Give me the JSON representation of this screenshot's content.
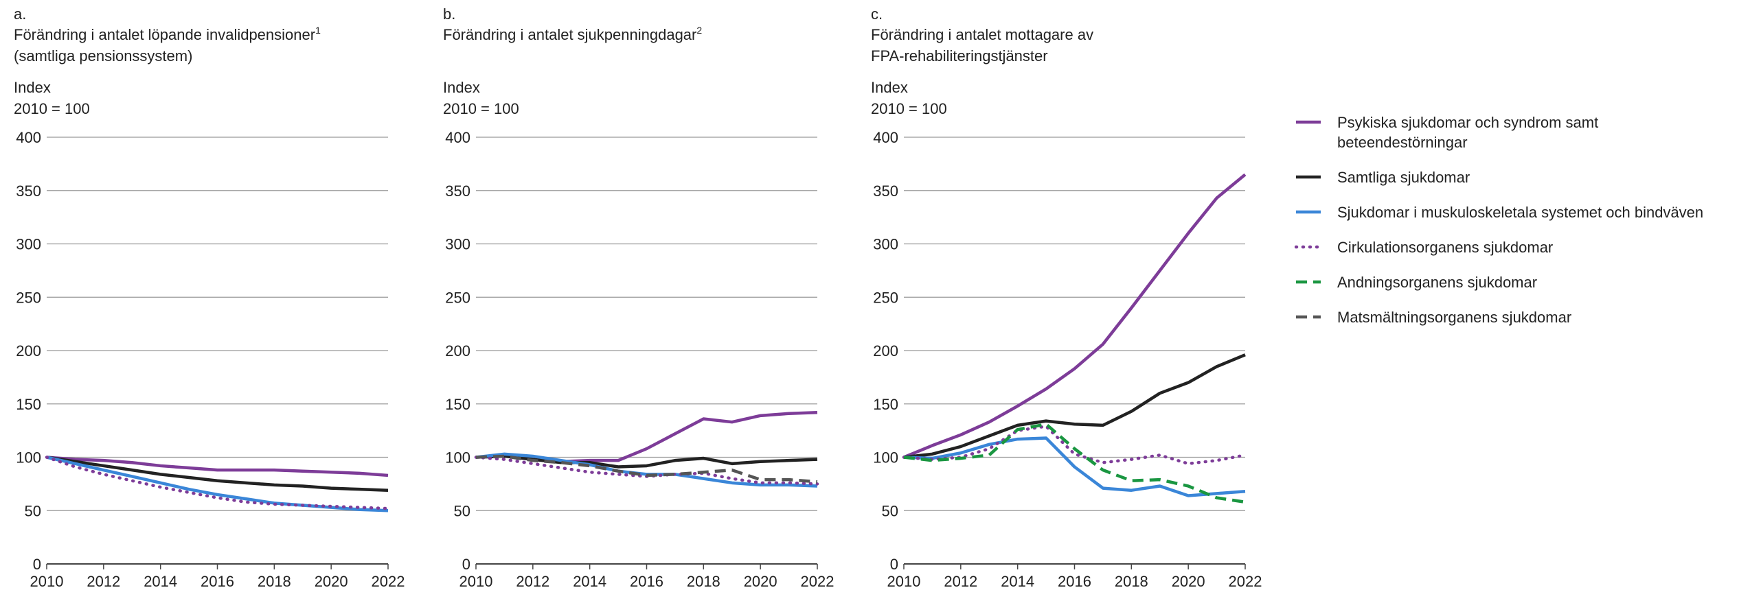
{
  "chart_data": [
    {
      "type": "line",
      "label": "a.",
      "title": [
        "Förändring i antalet löpande invalidpensioner",
        "(samtliga pensionssystem)"
      ],
      "footnote": "1",
      "ylabel": [
        "Index",
        "2010 = 100"
      ],
      "x": [
        2010,
        2011,
        2012,
        2013,
        2014,
        2015,
        2016,
        2017,
        2018,
        2019,
        2020,
        2021,
        2022
      ],
      "xlim": [
        2010,
        2022
      ],
      "xticks": [
        2010,
        2012,
        2014,
        2016,
        2018,
        2020,
        2022
      ],
      "ylim": [
        0,
        400
      ],
      "yticks": [
        0,
        50,
        100,
        150,
        200,
        250,
        300,
        350,
        400
      ],
      "grid": true,
      "series": [
        {
          "name": "Psykiska sjukdomar och syndrom samt beteendestörningar",
          "color": "#7d3c98",
          "dash": "solid",
          "values": [
            100,
            98,
            97,
            95,
            92,
            90,
            88,
            88,
            88,
            87,
            86,
            85,
            83
          ]
        },
        {
          "name": "Samtliga sjukdomar",
          "color": "#222222",
          "dash": "solid",
          "values": [
            100,
            96,
            92,
            88,
            84,
            81,
            78,
            76,
            74,
            73,
            71,
            70,
            69
          ]
        },
        {
          "name": "Sjukdomar i muskuloskeletala systemet och bindväven",
          "color": "#3a86d8",
          "dash": "solid",
          "values": [
            100,
            94,
            88,
            82,
            76,
            70,
            65,
            61,
            57,
            55,
            53,
            51,
            50
          ]
        },
        {
          "name": "Cirkulationsorganens sjukdomar",
          "color": "#7d3c98",
          "dash": "dotted",
          "values": [
            100,
            91,
            84,
            78,
            72,
            67,
            62,
            58,
            56,
            55,
            54,
            53,
            52
          ]
        }
      ]
    },
    {
      "type": "line",
      "label": "b.",
      "title": [
        "Förändring i antalet sjukpenningdagar"
      ],
      "footnote": "2",
      "ylabel": [
        "Index",
        "2010 = 100"
      ],
      "x": [
        2010,
        2011,
        2012,
        2013,
        2014,
        2015,
        2016,
        2017,
        2018,
        2019,
        2020,
        2021,
        2022
      ],
      "xlim": [
        2010,
        2022
      ],
      "xticks": [
        2010,
        2012,
        2014,
        2016,
        2018,
        2020,
        2022
      ],
      "ylim": [
        0,
        400
      ],
      "yticks": [
        0,
        50,
        100,
        150,
        200,
        250,
        300,
        350,
        400
      ],
      "grid": true,
      "series": [
        {
          "name": "Psykiska sjukdomar och syndrom samt beteendestörningar",
          "color": "#7d3c98",
          "dash": "solid",
          "values": [
            100,
            101,
            98,
            96,
            97,
            97,
            108,
            122,
            136,
            133,
            139,
            141,
            142
          ]
        },
        {
          "name": "Samtliga sjukdomar",
          "color": "#222222",
          "dash": "solid",
          "values": [
            100,
            101,
            98,
            95,
            95,
            91,
            92,
            97,
            99,
            94,
            96,
            97,
            98
          ]
        },
        {
          "name": "Sjukdomar i muskuloskeletala systemet och bindväven",
          "color": "#3a86d8",
          "dash": "solid",
          "values": [
            100,
            103,
            101,
            97,
            93,
            87,
            84,
            84,
            80,
            76,
            74,
            74,
            73
          ]
        },
        {
          "name": "Cirkulationsorganens sjukdomar",
          "color": "#7d3c98",
          "dash": "dotted",
          "values": [
            100,
            98,
            94,
            90,
            86,
            84,
            82,
            84,
            85,
            80,
            76,
            76,
            75
          ]
        },
        {
          "name": "Matsmältningsorganens sjukdomar",
          "color": "#555555",
          "dash": "dashed",
          "values": [
            100,
            101,
            97,
            95,
            92,
            87,
            83,
            84,
            86,
            88,
            79,
            79,
            77
          ]
        }
      ]
    },
    {
      "type": "line",
      "label": "c.",
      "title": [
        "Förändring i antalet mottagare av",
        "FPA-rehabiliteringstjänster"
      ],
      "ylabel": [
        "Index",
        "2010 = 100"
      ],
      "x": [
        2010,
        2011,
        2012,
        2013,
        2014,
        2015,
        2016,
        2017,
        2018,
        2019,
        2020,
        2021,
        2022
      ],
      "xlim": [
        2010,
        2022
      ],
      "xticks": [
        2010,
        2012,
        2014,
        2016,
        2018,
        2020,
        2022
      ],
      "ylim": [
        0,
        400
      ],
      "yticks": [
        0,
        50,
        100,
        150,
        200,
        250,
        300,
        350,
        400
      ],
      "grid": true,
      "series": [
        {
          "name": "Psykiska sjukdomar och syndrom samt beteendestörningar",
          "color": "#7d3c98",
          "dash": "solid",
          "values": [
            100,
            111,
            121,
            133,
            148,
            164,
            183,
            206,
            240,
            275,
            310,
            343,
            365
          ]
        },
        {
          "name": "Samtliga sjukdomar",
          "color": "#222222",
          "dash": "solid",
          "values": [
            100,
            103,
            110,
            120,
            130,
            134,
            131,
            130,
            143,
            160,
            170,
            185,
            196
          ]
        },
        {
          "name": "Sjukdomar i muskuloskeletala systemet och bindväven",
          "color": "#3a86d8",
          "dash": "solid",
          "values": [
            100,
            99,
            104,
            112,
            117,
            118,
            91,
            71,
            69,
            73,
            64,
            66,
            68
          ]
        },
        {
          "name": "Cirkulationsorganens sjukdomar",
          "color": "#7d3c98",
          "dash": "dotted",
          "values": [
            100,
            98,
            100,
            108,
            125,
            129,
            103,
            95,
            98,
            102,
            94,
            97,
            102
          ]
        },
        {
          "name": "Andningsorganens sjukdomar",
          "color": "#1a9641",
          "dash": "dashed",
          "values": [
            100,
            97,
            99,
            102,
            126,
            131,
            108,
            88,
            78,
            79,
            73,
            62,
            58
          ]
        },
        {
          "name": "Matsmältningsorganens sjukdomar",
          "color": "#555555",
          "dash": "dashed",
          "values": [
            null,
            null,
            null,
            null,
            null,
            null,
            null,
            null,
            null,
            null,
            null,
            null,
            null
          ]
        }
      ]
    }
  ]
}
